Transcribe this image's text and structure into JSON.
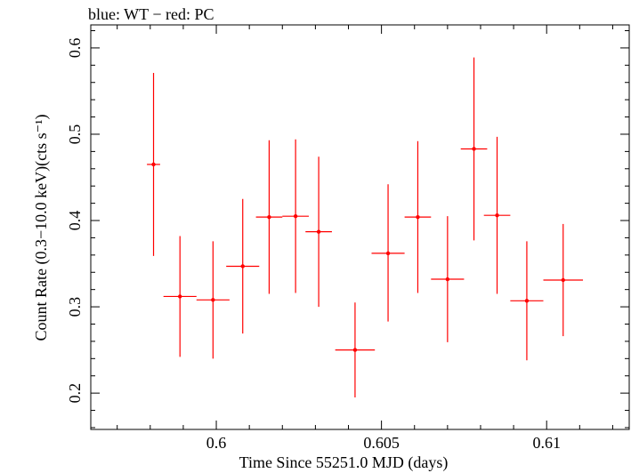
{
  "chart_data": {
    "type": "scatter",
    "title": "blue: WT − red: PC",
    "xlabel": "Time Since 55251.0 MJD (days)",
    "ylabel": "Count Rate (0.3−10.0 keV)(cts s⁻¹)",
    "xlim": [
      0.5962,
      0.6125
    ],
    "ylim": [
      0.1579,
      0.6267
    ],
    "x_ticks": [
      {
        "value": 0.6,
        "label": "0.6"
      },
      {
        "value": 0.605,
        "label": "0.605"
      },
      {
        "value": 0.61,
        "label": "0.61"
      }
    ],
    "y_ticks": [
      {
        "value": 0.2,
        "label": "0.2"
      },
      {
        "value": 0.3,
        "label": "0.3"
      },
      {
        "value": 0.4,
        "label": "0.4"
      },
      {
        "value": 0.5,
        "label": "0.5"
      },
      {
        "value": 0.6,
        "label": "0.6"
      }
    ],
    "grid": false,
    "series": [
      {
        "color": "#ff0000",
        "points": [
          {
            "x": 0.5981,
            "xerr": 0.0002,
            "y": 0.465,
            "ylo": 0.359,
            "yhi": 0.571
          },
          {
            "x": 0.5989,
            "xerr": 0.0005,
            "y": 0.312,
            "ylo": 0.242,
            "yhi": 0.382
          },
          {
            "x": 0.5999,
            "xerr": 0.0005,
            "y": 0.308,
            "ylo": 0.24,
            "yhi": 0.376
          },
          {
            "x": 0.6008,
            "xerr": 0.0005,
            "y": 0.347,
            "ylo": 0.269,
            "yhi": 0.425
          },
          {
            "x": 0.6016,
            "xerr": 0.0004,
            "y": 0.404,
            "ylo": 0.315,
            "yhi": 0.493
          },
          {
            "x": 0.6024,
            "xerr": 0.0004,
            "y": 0.405,
            "ylo": 0.316,
            "yhi": 0.494
          },
          {
            "x": 0.6031,
            "xerr": 0.0004,
            "y": 0.387,
            "ylo": 0.3,
            "yhi": 0.474
          },
          {
            "x": 0.6042,
            "xerr": 0.0006,
            "y": 0.25,
            "ylo": 0.195,
            "yhi": 0.305
          },
          {
            "x": 0.6052,
            "xerr": 0.0005,
            "y": 0.362,
            "ylo": 0.283,
            "yhi": 0.442
          },
          {
            "x": 0.6061,
            "xerr": 0.0004,
            "y": 0.404,
            "ylo": 0.316,
            "yhi": 0.492
          },
          {
            "x": 0.607,
            "xerr": 0.0005,
            "y": 0.332,
            "ylo": 0.259,
            "yhi": 0.405
          },
          {
            "x": 0.6078,
            "xerr": 0.0004,
            "y": 0.483,
            "ylo": 0.377,
            "yhi": 0.589
          },
          {
            "x": 0.6085,
            "xerr": 0.0004,
            "y": 0.406,
            "ylo": 0.315,
            "yhi": 0.497
          },
          {
            "x": 0.6094,
            "xerr": 0.0005,
            "y": 0.307,
            "ylo": 0.238,
            "yhi": 0.376
          },
          {
            "x": 0.6105,
            "xerr": 0.0006,
            "y": 0.331,
            "ylo": 0.266,
            "yhi": 0.396
          }
        ]
      }
    ]
  }
}
